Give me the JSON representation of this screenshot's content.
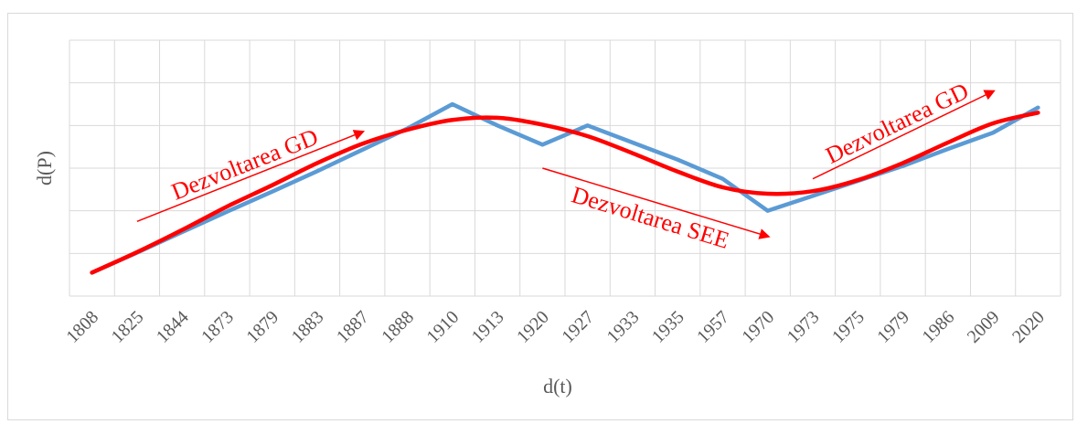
{
  "chart_data": {
    "type": "line",
    "xlabel": "d(t)",
    "ylabel": "d(P)",
    "categories": [
      "1808",
      "1825",
      "1844",
      "1873",
      "1879",
      "1883",
      "1887",
      "1888",
      "1910",
      "1913",
      "1920",
      "1927",
      "1933",
      "1935",
      "1957",
      "1970",
      "1973",
      "1975",
      "1979",
      "1986",
      "2009",
      "2020"
    ],
    "ylim": [
      0,
      6
    ],
    "grid": true,
    "series": [
      {
        "color": "#5b9bd5",
        "values": [
          0.55,
          1.02,
          1.5,
          1.98,
          2.45,
          2.93,
          3.43,
          3.93,
          4.5,
          4.0,
          3.55,
          4.0,
          3.6,
          3.2,
          2.75,
          2.0,
          2.35,
          2.7,
          3.05,
          3.45,
          3.83,
          4.42
        ]
      },
      {
        "color": "#ff0000",
        "values": [
          0.55,
          1.03,
          1.55,
          2.1,
          2.6,
          3.12,
          3.57,
          3.9,
          4.13,
          4.18,
          4.02,
          3.75,
          3.35,
          2.92,
          2.55,
          2.4,
          2.46,
          2.72,
          3.12,
          3.6,
          4.05,
          4.3
        ]
      }
    ],
    "annotations": [
      {
        "text": "Dezvoltarea GD",
        "from_index": 1,
        "to_index": 6,
        "from_y": 1.75,
        "to_y": 3.85
      },
      {
        "text": "Dezvoltarea SEE",
        "from_index": 10,
        "to_index": 15,
        "from_y": 3.0,
        "to_y": 1.4
      },
      {
        "text": "Dezvoltarea GD",
        "from_index": 16,
        "to_index": 20,
        "from_y": 2.75,
        "to_y": 4.8
      }
    ]
  }
}
